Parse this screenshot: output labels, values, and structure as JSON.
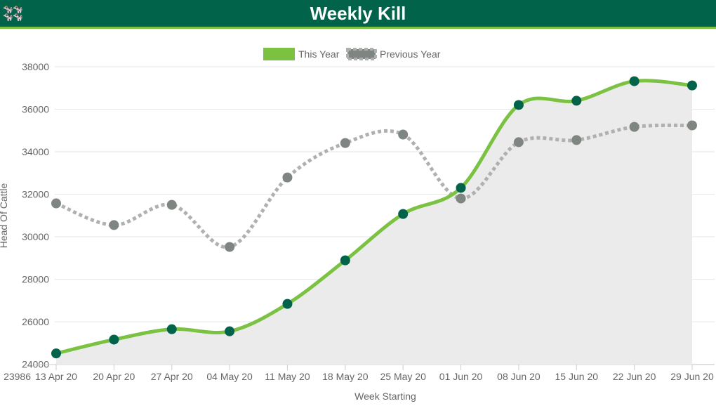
{
  "header": {
    "title": "Weekly Kill",
    "logo_icon": "cattle-icon"
  },
  "colors": {
    "this_year_line": "#7bc142",
    "this_year_point": "#00634a",
    "prev_year": "#b0b0b0",
    "prev_point": "#7f8581",
    "area": "#ebebeb"
  },
  "chart_data": {
    "type": "line",
    "title": "Weekly Kill",
    "xlabel": "Week Starting",
    "ylabel": "Head Of Cattle",
    "ylim": [
      23986,
      38000
    ],
    "yticks": [
      "24000",
      "26000",
      "28000",
      "30000",
      "32000",
      "34000",
      "36000",
      "38000"
    ],
    "ymin_label": "23986",
    "grid": true,
    "legend_position": "top",
    "categories": [
      "13 Apr 20",
      "20 Apr 20",
      "27 Apr 20",
      "04 May 20",
      "11 May 20",
      "18 May 20",
      "25 May 20",
      "01 Jun 20",
      "08 Jun 20",
      "15 Jun 20",
      "22 Jun 20",
      "29 Jun 20"
    ],
    "series": [
      {
        "name": "This Year",
        "values": [
          24510,
          25160,
          25650,
          25550,
          26840,
          28890,
          31070,
          32300,
          36200,
          36400,
          37320,
          37120
        ]
      },
      {
        "name": "Previous Year",
        "values": [
          31570,
          30550,
          31500,
          29520,
          32790,
          34410,
          34810,
          31800,
          34450,
          34550,
          35170,
          35240
        ]
      }
    ]
  }
}
